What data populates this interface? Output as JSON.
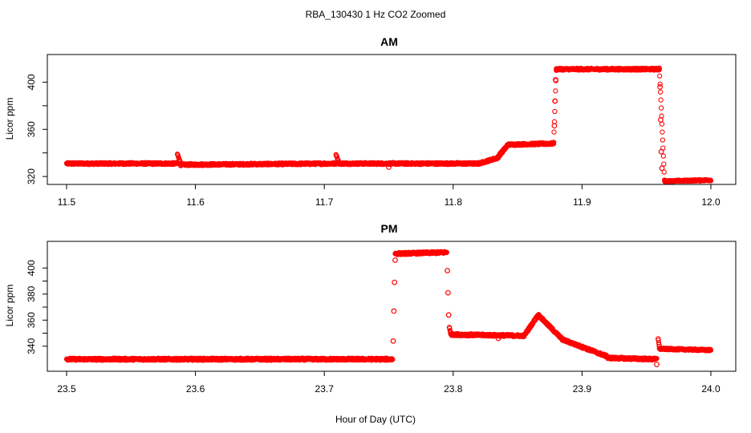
{
  "page_title": "RBA_130430  1 Hz CO2 Zoomed",
  "colors": {
    "points": "#ff0000",
    "axis": "#000000",
    "background": "#ffffff"
  },
  "x_axis_label": "Hour of Day (UTC)",
  "chart_data": [
    {
      "type": "scatter",
      "title": "AM",
      "ylabel": "Licor ppm",
      "marker": "open-circle",
      "xlim": [
        11.5,
        12.0
      ],
      "ylim": [
        316,
        418
      ],
      "x_ticks": [
        "11.5",
        "11.6",
        "11.7",
        "11.8",
        "11.9",
        "12.0"
      ],
      "y_ticks": [
        "320",
        "360",
        "400"
      ],
      "segments": [
        {
          "x": [
            11.5,
            11.586
          ],
          "y": [
            331,
            331
          ],
          "noise": 0.8
        },
        {
          "x": [
            11.586,
            11.588
          ],
          "y": [
            339,
            333
          ],
          "noise": 0.5
        },
        {
          "x": [
            11.588,
            11.709
          ],
          "y": [
            330,
            331
          ],
          "noise": 0.8
        },
        {
          "x": [
            11.709,
            11.711
          ],
          "y": [
            339,
            333
          ],
          "noise": 0.5
        },
        {
          "x": [
            11.711,
            11.82
          ],
          "y": [
            331,
            331
          ],
          "noise": 0.8
        },
        {
          "x": [
            11.82,
            11.835
          ],
          "y": [
            331,
            336
          ],
          "noise": 0.8
        },
        {
          "x": [
            11.835,
            11.842
          ],
          "y": [
            337,
            346
          ],
          "noise": 1.0
        },
        {
          "x": [
            11.842,
            11.878
          ],
          "y": [
            347,
            348
          ],
          "noise": 0.8
        },
        {
          "x": [
            11.878,
            11.88
          ],
          "y": [
            349,
            410
          ],
          "noise": 0.0
        },
        {
          "x": [
            11.88,
            11.96
          ],
          "y": [
            411,
            411
          ],
          "noise": 0.8
        },
        {
          "x": [
            11.96,
            11.964
          ],
          "y": [
            412,
            317
          ],
          "noise": 0.0
        },
        {
          "x": [
            11.964,
            12.0
          ],
          "y": [
            316,
            317
          ],
          "noise": 0.6
        }
      ],
      "points": [
        {
          "x": 11.75,
          "y": 328
        },
        {
          "x": 11.8785,
          "y": 363
        },
        {
          "x": 11.879,
          "y": 384
        },
        {
          "x": 11.8795,
          "y": 402
        },
        {
          "x": 11.9605,
          "y": 396
        },
        {
          "x": 11.961,
          "y": 368
        },
        {
          "x": 11.9615,
          "y": 341
        },
        {
          "x": 11.962,
          "y": 327
        }
      ]
    },
    {
      "type": "scatter",
      "title": "PM",
      "ylabel": "Licor ppm",
      "marker": "open-circle",
      "xlim": [
        23.5,
        24.0
      ],
      "ylim": [
        322,
        418
      ],
      "x_ticks": [
        "23.5",
        "23.6",
        "23.7",
        "23.8",
        "23.9",
        "24.0"
      ],
      "y_ticks": [
        "340",
        "360",
        "380",
        "400"
      ],
      "segments": [
        {
          "x": [
            23.5,
            23.753
          ],
          "y": [
            330,
            330
          ],
          "noise": 0.8
        },
        {
          "x": [
            23.755,
            23.795
          ],
          "y": [
            411,
            412
          ],
          "noise": 0.8
        },
        {
          "x": [
            23.797,
            23.798
          ],
          "y": [
            355,
            350
          ],
          "noise": 0.8
        },
        {
          "x": [
            23.798,
            23.855
          ],
          "y": [
            349,
            348
          ],
          "noise": 0.8
        },
        {
          "x": [
            23.855,
            23.866
          ],
          "y": [
            348,
            364
          ],
          "noise": 0.8
        },
        {
          "x": [
            23.866,
            23.885
          ],
          "y": [
            364,
            345
          ],
          "noise": 0.8
        },
        {
          "x": [
            23.885,
            23.92
          ],
          "y": [
            345,
            332
          ],
          "noise": 0.8
        },
        {
          "x": [
            23.92,
            23.958
          ],
          "y": [
            331,
            330
          ],
          "noise": 0.8
        },
        {
          "x": [
            23.959,
            23.96
          ],
          "y": [
            346,
            340
          ],
          "noise": 0.5
        },
        {
          "x": [
            23.96,
            24.0
          ],
          "y": [
            338,
            337
          ],
          "noise": 0.6
        }
      ],
      "points": [
        {
          "x": 23.7535,
          "y": 344
        },
        {
          "x": 23.754,
          "y": 367
        },
        {
          "x": 23.7545,
          "y": 389
        },
        {
          "x": 23.755,
          "y": 406
        },
        {
          "x": 23.7955,
          "y": 398
        },
        {
          "x": 23.796,
          "y": 381
        },
        {
          "x": 23.7965,
          "y": 364
        },
        {
          "x": 23.835,
          "y": 346
        },
        {
          "x": 23.958,
          "y": 326
        }
      ]
    }
  ]
}
